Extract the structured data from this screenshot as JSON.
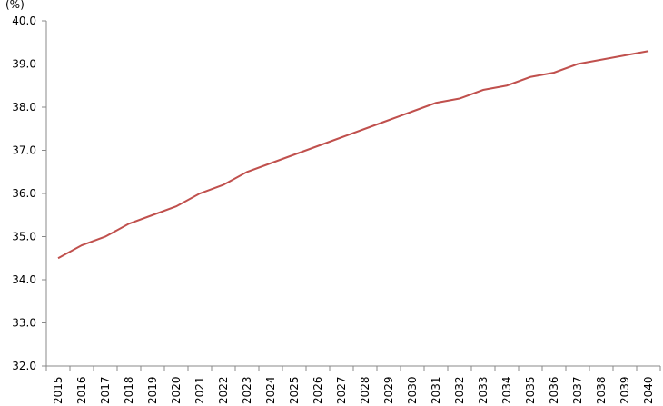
{
  "chart_data": {
    "type": "line",
    "unit_label": "(%)",
    "categories": [
      "2015",
      "2016",
      "2017",
      "2018",
      "2019",
      "2020",
      "2021",
      "2022",
      "2023",
      "2024",
      "2025",
      "2026",
      "2027",
      "2028",
      "2029",
      "2030",
      "2031",
      "2032",
      "2033",
      "2034",
      "2035",
      "2036",
      "2037",
      "2038",
      "2039",
      "2040"
    ],
    "values": [
      34.5,
      34.8,
      35.0,
      35.3,
      35.5,
      35.7,
      36.0,
      36.2,
      36.5,
      36.7,
      36.9,
      37.1,
      37.3,
      37.5,
      37.7,
      37.9,
      38.1,
      38.2,
      38.4,
      38.5,
      38.7,
      38.8,
      39.0,
      39.1,
      39.2,
      39.3
    ],
    "color": "#c0504d",
    "ylim": [
      32,
      40
    ],
    "yticks": [
      {
        "value": 32,
        "label": "32.0"
      },
      {
        "value": 33,
        "label": "33.0"
      },
      {
        "value": 34,
        "label": "34.0"
      },
      {
        "value": 35,
        "label": "35.0"
      },
      {
        "value": 36,
        "label": "36.0"
      },
      {
        "value": 37,
        "label": "37.0"
      },
      {
        "value": 38,
        "label": "38.0"
      },
      {
        "value": 39,
        "label": "39.0"
      },
      {
        "value": 40,
        "label": "40.0"
      }
    ]
  }
}
